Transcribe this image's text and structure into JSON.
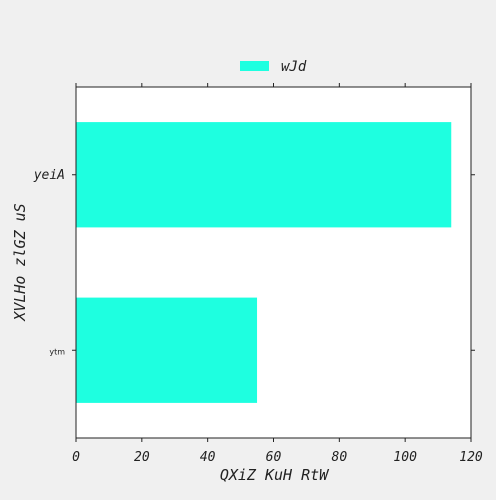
{
  "chart_data": {
    "type": "bar",
    "orientation": "horizontal",
    "categories": [
      "ytm",
      "yeiA"
    ],
    "series": [
      {
        "name": "wJd",
        "values": [
          55,
          114
        ],
        "color": "#1effe0"
      }
    ],
    "xlabel": "QXiZ KuH RtW",
    "ylabel": "XVLHo zlGZ uS",
    "xlim": [
      0,
      120
    ],
    "xticks": [
      0,
      20,
      40,
      60,
      80,
      100,
      120
    ],
    "grid": false,
    "legend_position": "top-center"
  },
  "colors": {
    "figure_background": "#f0f0f0",
    "plot_background": "#ffffff",
    "bar": "#1effe0",
    "axis": "#222222"
  }
}
